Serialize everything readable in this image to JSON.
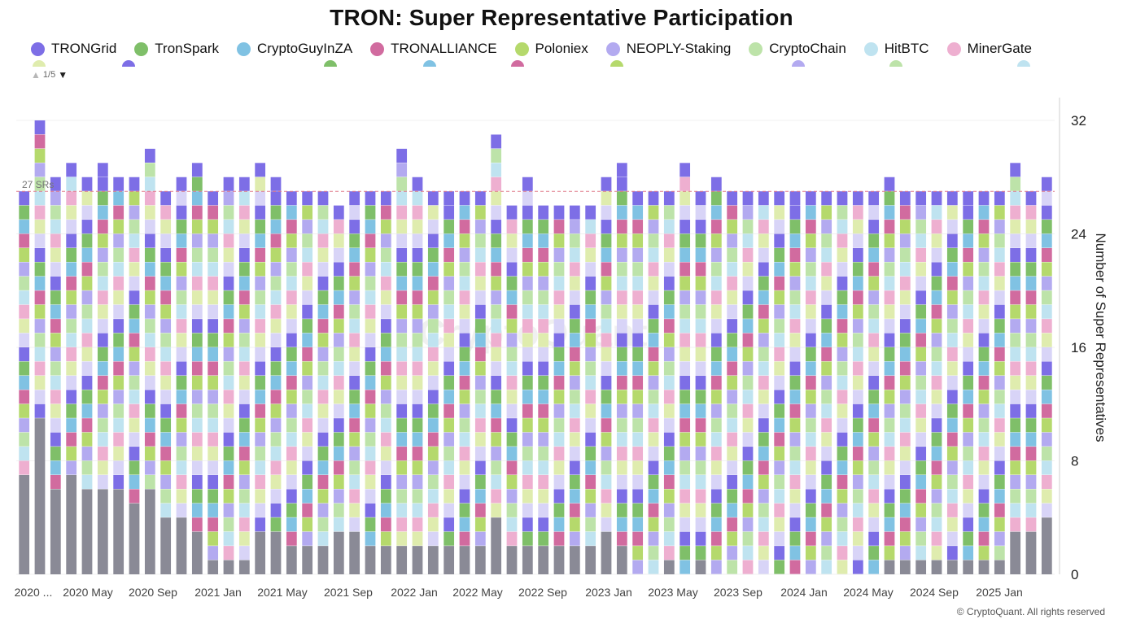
{
  "chart_data": {
    "type": "bar",
    "stacked": true,
    "title": "TRON: Super Representative Participation",
    "ylabel": "Number of Super Representatives",
    "y_axis_side": "right",
    "ylim": [
      0,
      32
    ],
    "yticks": [
      0,
      8,
      16,
      24,
      32
    ],
    "reference_line": {
      "value": 27,
      "label": "27 SRs"
    },
    "x_tick_labels": [
      "2020 ...",
      "2020 May",
      "2020 Sep",
      "2021 Jan",
      "2021 May",
      "2021 Sep",
      "2022 Jan",
      "2022 May",
      "2022 Sep",
      "2023 Jan",
      "2023 May",
      "2023 Sep",
      "2024 Jan",
      "2024 May",
      "2024 Sep",
      "2025 Jan"
    ],
    "totals": [
      27,
      32,
      28,
      29,
      28,
      29,
      28,
      28,
      30,
      27,
      28,
      29,
      27,
      28,
      28,
      29,
      28,
      27,
      27,
      27,
      26,
      27,
      27,
      27,
      30,
      28,
      27,
      27,
      27,
      27,
      31,
      26,
      28,
      26,
      26,
      26,
      26,
      28,
      29,
      27,
      27,
      27,
      29,
      27,
      28,
      27,
      27,
      27,
      27,
      27,
      27,
      27,
      27,
      27,
      27,
      28,
      27,
      27,
      27,
      27,
      27,
      27,
      27,
      29,
      27,
      28
    ],
    "base_series_values": [
      7,
      11,
      6,
      7,
      6,
      6,
      6,
      5,
      6,
      4,
      4,
      3,
      1,
      1,
      1,
      3,
      3,
      2,
      2,
      2,
      3,
      3,
      2,
      2,
      2,
      2,
      2,
      2,
      2,
      2,
      4,
      2,
      2,
      2,
      2,
      2,
      2,
      3,
      2,
      0,
      0,
      1,
      0,
      1,
      0,
      0,
      0,
      0,
      0,
      0,
      0,
      0,
      0,
      0,
      0,
      1,
      1,
      1,
      1,
      1,
      1,
      1,
      1,
      3,
      3,
      4
    ],
    "legend": {
      "page_label": "1/5",
      "items": [
        {
          "name": "TRONGrid",
          "color": "#7d6ee6"
        },
        {
          "name": "TronSpark",
          "color": "#7fbf69"
        },
        {
          "name": "CryptoGuyInZA",
          "color": "#80c2e3"
        },
        {
          "name": "TRONALLIANCE",
          "color": "#d16b9f"
        },
        {
          "name": "Poloniex",
          "color": "#b5d96c"
        },
        {
          "name": "NEOPLY-Staking",
          "color": "#b3aaf0"
        },
        {
          "name": "CryptoChain",
          "color": "#bde3a9"
        },
        {
          "name": "HitBTC",
          "color": "#bfe3f0"
        },
        {
          "name": "MinerGate",
          "color": "#eeafd0"
        }
      ]
    },
    "base_color": "#8a8a96",
    "extra_colors": [
      "#dfecae",
      "#d8d4f7"
    ],
    "watermark": "CryptoQuant",
    "copyright": "© CryptoQuant. All rights reserved"
  }
}
